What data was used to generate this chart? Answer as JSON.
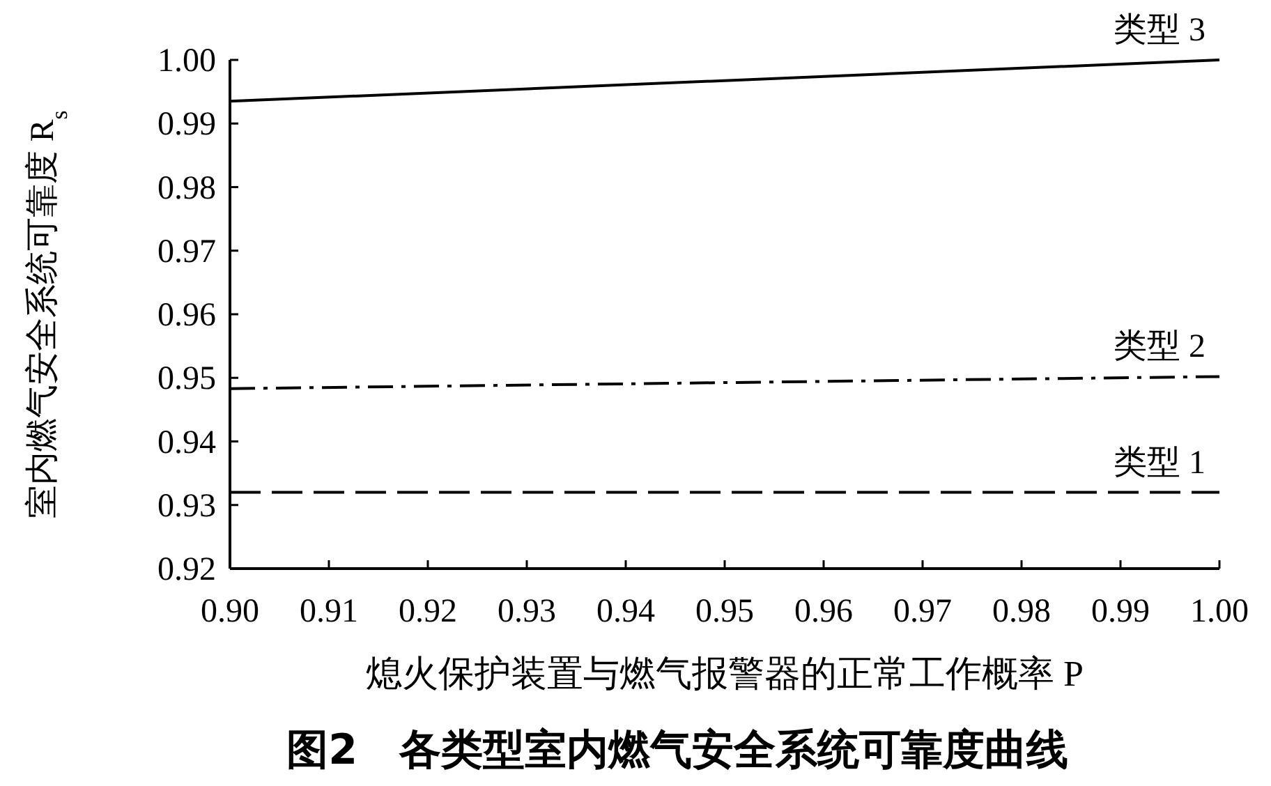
{
  "chart_data": {
    "type": "line",
    "title": "图2　各类型室内燃气安全系统可靠度曲线",
    "xlabel": "熄火保护装置与燃气报警器的正常工作概率 P",
    "ylabel": "室内燃气安全系统可靠度 R$_{s}$",
    "x": [
      0.9,
      1.0
    ],
    "xlim": [
      0.9,
      1.0
    ],
    "xticks": [
      {
        "value": 0.9,
        "label": "0.90"
      },
      {
        "value": 0.91,
        "label": "0.91"
      },
      {
        "value": 0.92,
        "label": "0.92"
      },
      {
        "value": 0.93,
        "label": "0.93"
      },
      {
        "value": 0.94,
        "label": "0.94"
      },
      {
        "value": 0.95,
        "label": "0.95"
      },
      {
        "value": 0.96,
        "label": "0.96"
      },
      {
        "value": 0.97,
        "label": "0.97"
      },
      {
        "value": 0.98,
        "label": "0.98"
      },
      {
        "value": 0.99,
        "label": "0.99"
      },
      {
        "value": 1.0,
        "label": "1.00"
      }
    ],
    "ylim": [
      0.92,
      1.0
    ],
    "yticks": [
      {
        "value": 0.92,
        "label": "0.92"
      },
      {
        "value": 0.93,
        "label": "0.93"
      },
      {
        "value": 0.94,
        "label": "0.94"
      },
      {
        "value": 0.95,
        "label": "0.95"
      },
      {
        "value": 0.96,
        "label": "0.96"
      },
      {
        "value": 0.97,
        "label": "0.97"
      },
      {
        "value": 0.98,
        "label": "0.98"
      },
      {
        "value": 0.99,
        "label": "0.99"
      },
      {
        "value": 1.0,
        "label": "1.00"
      }
    ],
    "grid": false,
    "series": [
      {
        "name": "类型 1",
        "color": "#000000",
        "line_style": "dashed",
        "values": [
          0.932,
          0.932
        ]
      },
      {
        "name": "类型 2",
        "color": "#000000",
        "line_style": "dashdot",
        "values": [
          0.9483,
          0.9502
        ]
      },
      {
        "name": "类型 3",
        "color": "#000000",
        "line_style": "solid",
        "values": [
          0.9935,
          1.0
        ]
      }
    ]
  }
}
